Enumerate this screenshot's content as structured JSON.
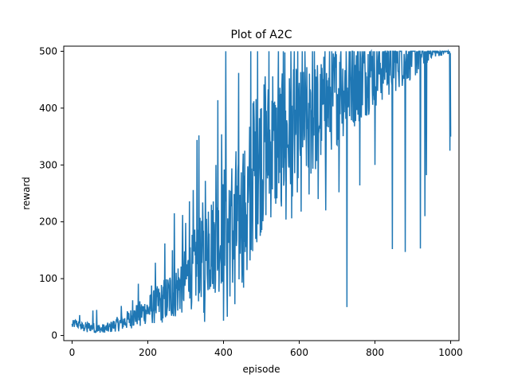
{
  "chart_data": {
    "type": "line",
    "title": "Plot of A2C",
    "xlabel": "episode",
    "ylabel": "reward",
    "xlim": [
      -22,
      1022
    ],
    "ylim": [
      -9,
      509
    ],
    "xticks": [
      0,
      200,
      400,
      600,
      800,
      1000
    ],
    "yticks": [
      0,
      100,
      200,
      300,
      400,
      500
    ],
    "grid": false,
    "series": [
      {
        "color": "#1f77b4",
        "anchors": [
          [
            0,
            18
          ],
          [
            10,
            22
          ],
          [
            20,
            17
          ],
          [
            30,
            14
          ],
          [
            40,
            16
          ],
          [
            50,
            15
          ],
          [
            60,
            13
          ],
          [
            70,
            12
          ],
          [
            80,
            11
          ],
          [
            90,
            12
          ],
          [
            100,
            14
          ],
          [
            110,
            18
          ],
          [
            120,
            20
          ],
          [
            130,
            22
          ],
          [
            140,
            25
          ],
          [
            150,
            28
          ],
          [
            160,
            32
          ],
          [
            170,
            36
          ],
          [
            180,
            40
          ],
          [
            190,
            42
          ],
          [
            200,
            45
          ],
          [
            210,
            48
          ],
          [
            220,
            52
          ],
          [
            230,
            55
          ],
          [
            240,
            60
          ],
          [
            250,
            65
          ],
          [
            260,
            72
          ],
          [
            270,
            78
          ],
          [
            280,
            85
          ],
          [
            290,
            92
          ],
          [
            300,
            100
          ],
          [
            310,
            108
          ],
          [
            320,
            115
          ],
          [
            330,
            125
          ],
          [
            340,
            135
          ],
          [
            350,
            142
          ],
          [
            360,
            150
          ],
          [
            370,
            160
          ],
          [
            380,
            165
          ],
          [
            390,
            170
          ],
          [
            400,
            180
          ],
          [
            410,
            175
          ],
          [
            420,
            170
          ],
          [
            430,
            180
          ],
          [
            440,
            190
          ],
          [
            450,
            205
          ],
          [
            460,
            230
          ],
          [
            470,
            250
          ],
          [
            480,
            290
          ],
          [
            490,
            300
          ],
          [
            500,
            310
          ],
          [
            510,
            320
          ],
          [
            520,
            330
          ],
          [
            530,
            325
          ],
          [
            540,
            330
          ],
          [
            550,
            340
          ],
          [
            560,
            345
          ],
          [
            570,
            350
          ],
          [
            580,
            355
          ],
          [
            590,
            360
          ],
          [
            600,
            360
          ],
          [
            610,
            365
          ],
          [
            620,
            370
          ],
          [
            630,
            375
          ],
          [
            640,
            380
          ],
          [
            650,
            390
          ],
          [
            660,
            395
          ],
          [
            670,
            405
          ],
          [
            680,
            410
          ],
          [
            690,
            420
          ],
          [
            700,
            425
          ],
          [
            710,
            430
          ],
          [
            720,
            435
          ],
          [
            730,
            440
          ],
          [
            740,
            445
          ],
          [
            750,
            448
          ],
          [
            760,
            452
          ],
          [
            770,
            455
          ],
          [
            780,
            460
          ],
          [
            790,
            465
          ],
          [
            800,
            470
          ],
          [
            810,
            472
          ],
          [
            820,
            475
          ],
          [
            830,
            478
          ],
          [
            840,
            482
          ],
          [
            850,
            485
          ],
          [
            860,
            488
          ],
          [
            870,
            490
          ],
          [
            880,
            493
          ],
          [
            890,
            495
          ],
          [
            900,
            496
          ],
          [
            910,
            497
          ],
          [
            920,
            498
          ],
          [
            930,
            498
          ],
          [
            940,
            499
          ],
          [
            950,
            499
          ],
          [
            960,
            499
          ],
          [
            970,
            499
          ],
          [
            980,
            500
          ],
          [
            990,
            500
          ],
          [
            1000,
            500
          ]
        ],
        "noise": [
          [
            0,
            8
          ],
          [
            100,
            10
          ],
          [
            200,
            25
          ],
          [
            300,
            60
          ],
          [
            400,
            100
          ],
          [
            470,
            140
          ],
          [
            550,
            120
          ],
          [
            650,
            100
          ],
          [
            750,
            80
          ],
          [
            850,
            60
          ],
          [
            920,
            40
          ],
          [
            950,
            10
          ],
          [
            1000,
            5
          ]
        ],
        "spikes": [
          [
            20,
            36
          ],
          [
            55,
            44
          ],
          [
            65,
            45
          ],
          [
            130,
            52
          ],
          [
            160,
            62
          ],
          [
            175,
            91
          ],
          [
            210,
            88
          ],
          [
            220,
            128
          ],
          [
            245,
            162
          ],
          [
            265,
            150
          ],
          [
            270,
            215
          ],
          [
            292,
            212
          ],
          [
            300,
            198
          ],
          [
            310,
            236
          ],
          [
            320,
            256
          ],
          [
            330,
            344
          ],
          [
            335,
            352
          ],
          [
            345,
            234
          ],
          [
            352,
            272
          ],
          [
            360,
            218
          ],
          [
            368,
            230
          ],
          [
            380,
            300
          ],
          [
            385,
            414
          ],
          [
            395,
            354
          ],
          [
            402,
            292
          ],
          [
            406,
            500
          ],
          [
            415,
            256
          ],
          [
            422,
            294
          ],
          [
            433,
            324
          ],
          [
            440,
            462
          ],
          [
            446,
            246
          ],
          [
            452,
            320
          ],
          [
            458,
            234
          ],
          [
            466,
            256
          ],
          [
            472,
            500
          ],
          [
            480,
            412
          ],
          [
            490,
            500
          ],
          [
            500,
            400
          ],
          [
            510,
            456
          ],
          [
            520,
            500
          ],
          [
            530,
            456
          ],
          [
            545,
            500
          ],
          [
            558,
            500
          ],
          [
            562,
            498
          ],
          [
            578,
            500
          ],
          [
            587,
            500
          ],
          [
            596,
            500
          ],
          [
            608,
            500
          ],
          [
            615,
            500
          ],
          [
            628,
            400
          ],
          [
            635,
            500
          ],
          [
            640,
            500
          ],
          [
            650,
            500
          ],
          [
            668,
            500
          ],
          [
            680,
            500
          ],
          [
            686,
            500
          ],
          [
            696,
            500
          ],
          [
            710,
            500
          ],
          [
            724,
            500
          ],
          [
            740,
            500
          ],
          [
            756,
            500
          ],
          [
            770,
            500
          ],
          [
            786,
            500
          ],
          [
            805,
            500
          ],
          [
            812,
            500
          ],
          [
            828,
            500
          ],
          [
            836,
            500
          ],
          [
            848,
            500
          ],
          [
            866,
            500
          ],
          [
            880,
            500
          ]
        ],
        "dips": [
          [
            40,
            6
          ],
          [
            62,
            7
          ],
          [
            70,
            8
          ],
          [
            180,
            17
          ],
          [
            240,
            30
          ],
          [
            250,
            35
          ],
          [
            266,
            38
          ],
          [
            348,
            40
          ],
          [
            350,
            24
          ],
          [
            400,
            26
          ],
          [
            410,
            33
          ],
          [
            430,
            55
          ],
          [
            462,
            115
          ],
          [
            470,
            132
          ],
          [
            552,
            238
          ],
          [
            565,
            204
          ],
          [
            580,
            206
          ],
          [
            605,
            218
          ],
          [
            626,
            248
          ],
          [
            650,
            240
          ],
          [
            670,
            220
          ],
          [
            705,
            252
          ],
          [
            726,
            50
          ],
          [
            760,
            264
          ],
          [
            800,
            300
          ],
          [
            846,
            152
          ],
          [
            880,
            147
          ],
          [
            920,
            153
          ],
          [
            932,
            210
          ],
          [
            936,
            282
          ],
          [
            962,
            500
          ],
          [
            998,
            325
          ],
          [
            1000,
            350
          ]
        ]
      }
    ]
  }
}
